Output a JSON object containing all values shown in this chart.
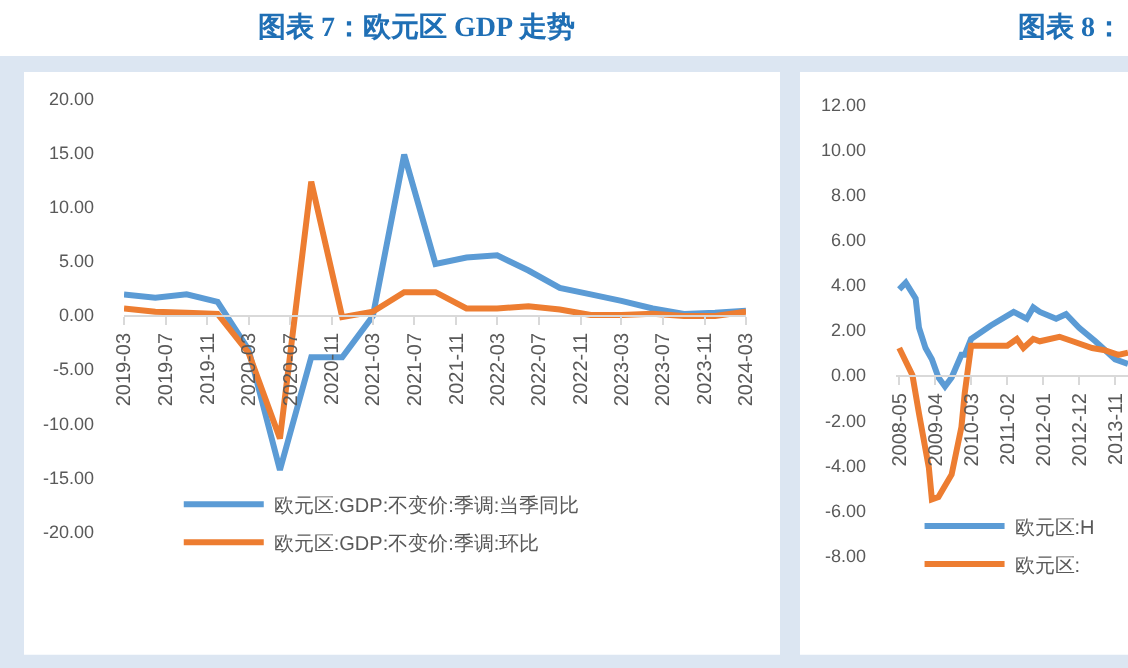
{
  "chart_data": [
    {
      "type": "line",
      "title": "图表 7：欧元区 GDP 走势",
      "legend": "bottom",
      "grid": false,
      "x": [
        "2019-03",
        "2019-06",
        "2019-09",
        "2019-12",
        "2020-03",
        "2020-06",
        "2020-09",
        "2020-12",
        "2021-03",
        "2021-06",
        "2021-09",
        "2021-12",
        "2022-03",
        "2022-06",
        "2022-09",
        "2022-12",
        "2023-03",
        "2023-06",
        "2023-09",
        "2023-12",
        "2024-03"
      ],
      "series": [
        {
          "name": "欧元区:GDP:不变价:季调:当季同比",
          "color": "#5b9bd5",
          "values": [
            1.9,
            1.6,
            1.9,
            1.2,
            -3.2,
            -14.3,
            -3.9,
            -3.9,
            -0.1,
            14.8,
            4.7,
            5.3,
            5.5,
            4.1,
            2.5,
            1.9,
            1.3,
            0.6,
            0.1,
            0.2,
            0.4
          ]
        },
        {
          "name": "欧元区:GDP:不变价:季调:环比",
          "color": "#ed7d31",
          "values": [
            0.6,
            0.3,
            0.2,
            0.1,
            -3.5,
            -11.4,
            12.3,
            -0.2,
            0.3,
            2.1,
            2.1,
            0.6,
            0.6,
            0.8,
            0.5,
            0.0,
            0.0,
            0.1,
            -0.1,
            -0.1,
            0.3
          ]
        }
      ],
      "xlim": [
        "2019-03",
        "2024-03"
      ],
      "xticks": [
        "2019-03",
        "2019-07",
        "2019-11",
        "2020-03",
        "2020-07",
        "2020-11",
        "2021-03",
        "2021-07",
        "2021-11",
        "2022-03",
        "2022-07",
        "2022-11",
        "2023-03",
        "2023-07",
        "2023-11",
        "2024-03"
      ],
      "ylim": [
        -20,
        20
      ],
      "yticks": [
        {
          "value": 20,
          "label": "20.00"
        },
        {
          "value": 15,
          "label": "15.00"
        },
        {
          "value": 10,
          "label": "10.00"
        },
        {
          "value": 5,
          "label": "5.00"
        },
        {
          "value": 0,
          "label": "0.00"
        },
        {
          "value": -5,
          "label": "-5.00"
        },
        {
          "value": -10,
          "label": "-10.00"
        },
        {
          "value": -15,
          "label": "-15.00"
        },
        {
          "value": -20,
          "label": "-20.00"
        }
      ]
    },
    {
      "type": "line",
      "title": "图表 8：",
      "legend": "bottom",
      "grid": false,
      "series": [
        {
          "name": "欧元区:H",
          "color": "#5b9bd5",
          "x": [
            "2008-05",
            "2008-07",
            "2008-10",
            "2008-11",
            "2009-01",
            "2009-03",
            "2009-05",
            "2009-07",
            "2009-09",
            "2009-12",
            "2010-01",
            "2010-03",
            "2010-09",
            "2011-04",
            "2011-08",
            "2011-10",
            "2011-12",
            "2012-05",
            "2012-08",
            "2012-12",
            "2013-05",
            "2013-08",
            "2013-11",
            "2014-03"
          ],
          "values": [
            3.8,
            4.1,
            3.4,
            2.1,
            1.2,
            0.7,
            -0.1,
            -0.5,
            -0.1,
            0.9,
            0.9,
            1.6,
            2.2,
            2.8,
            2.5,
            3.0,
            2.8,
            2.5,
            2.7,
            2.1,
            1.5,
            1.1,
            0.7,
            0.5
          ]
        },
        {
          "name": "欧元区:",
          "color": "#ed7d31",
          "x": [
            "2008-05",
            "2008-09",
            "2008-11",
            "2009-02",
            "2009-03",
            "2009-05",
            "2009-09",
            "2009-12",
            "2010-01",
            "2010-03",
            "2011-02",
            "2011-05",
            "2011-07",
            "2011-10",
            "2011-12",
            "2012-06",
            "2012-10",
            "2013-04",
            "2013-08",
            "2013-12",
            "2014-03"
          ],
          "values": [
            1.2,
            0.0,
            -1.7,
            -4.1,
            -5.5,
            -5.4,
            -4.4,
            -2.3,
            -0.8,
            1.3,
            1.3,
            1.6,
            1.2,
            1.6,
            1.5,
            1.7,
            1.5,
            1.2,
            1.1,
            0.9,
            1.0
          ]
        }
      ],
      "xlim": [
        "2008-04",
        "2014-03"
      ],
      "xticks": [
        "2008-05",
        "2009-04",
        "2010-03",
        "2011-02",
        "2012-01",
        "2012-12",
        "2013-11"
      ],
      "ylim": [
        -8,
        12
      ],
      "yticks": [
        {
          "value": 12,
          "label": "12.00"
        },
        {
          "value": 10,
          "label": "10.00"
        },
        {
          "value": 8,
          "label": "8.00"
        },
        {
          "value": 6,
          "label": "6.00"
        },
        {
          "value": 4,
          "label": "4.00"
        },
        {
          "value": 2,
          "label": "2.00"
        },
        {
          "value": 0,
          "label": "0.00"
        },
        {
          "value": -2,
          "label": "-2.00"
        },
        {
          "value": -4,
          "label": "-4.00"
        },
        {
          "value": -6,
          "label": "-6.00"
        },
        {
          "value": -8,
          "label": "-8.00"
        }
      ]
    }
  ]
}
